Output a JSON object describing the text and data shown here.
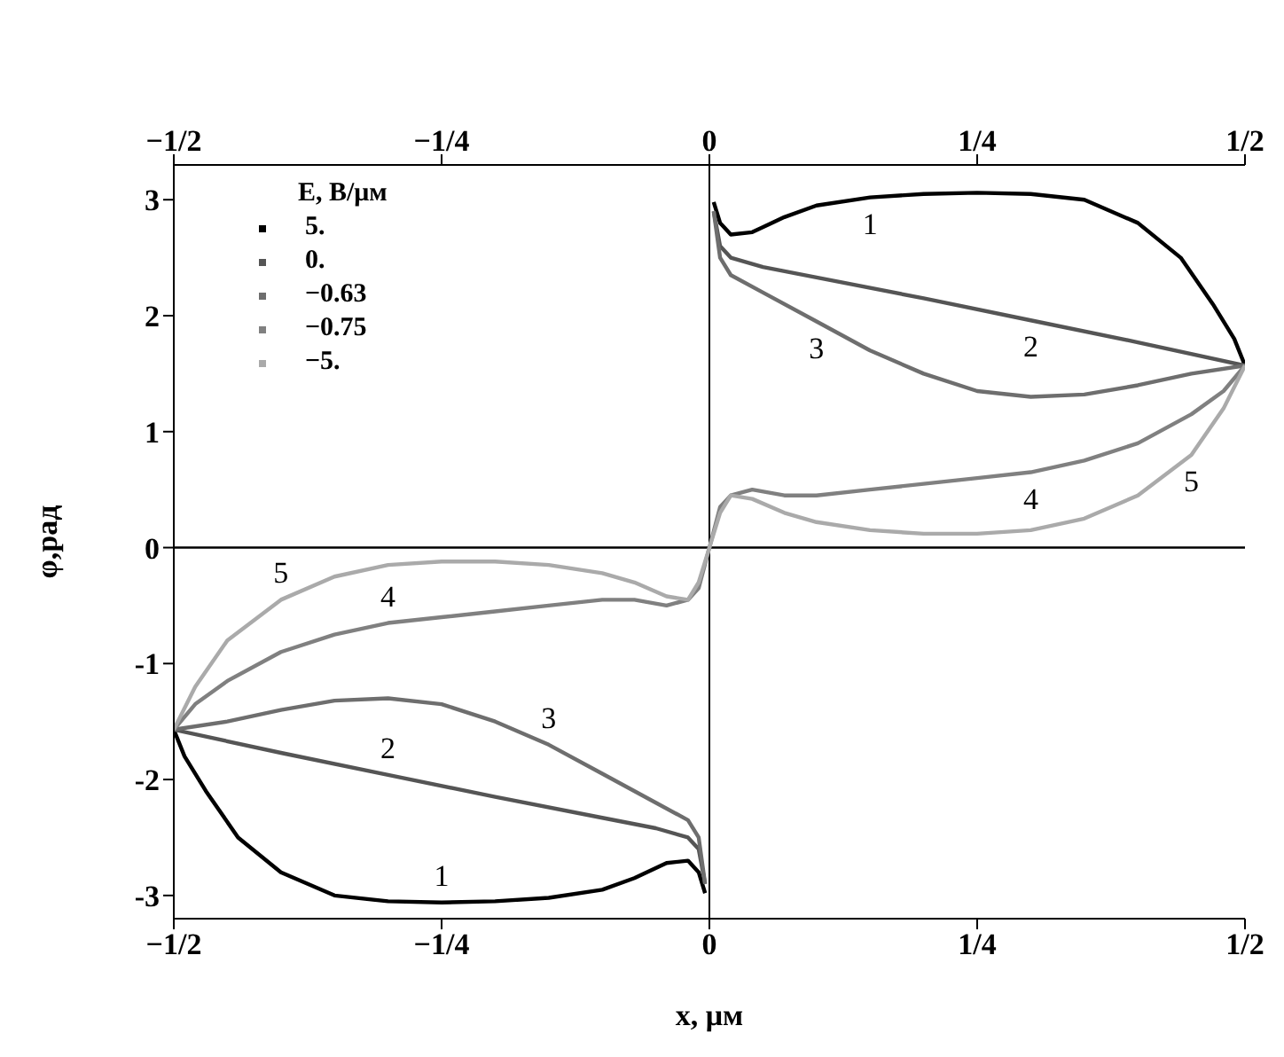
{
  "chart_data": {
    "type": "line",
    "xlabel": "x, μм",
    "ylabel": "φ,рад",
    "legend_title": "E, В/μм",
    "legend": "top left",
    "grid": false,
    "xlim": [
      -0.5,
      0.5
    ],
    "xticks": [
      {
        "value": -0.5,
        "label": "−1/2"
      },
      {
        "value": -0.25,
        "label": "−1/4"
      },
      0,
      {
        "value": 0.25,
        "label": "1/4"
      },
      {
        "value": 0.5,
        "label": "1/2"
      }
    ],
    "x2lim": [
      -0.5,
      0.5
    ],
    "x2ticks": [
      {
        "value": -0.5,
        "label": "−1/2"
      },
      {
        "value": -0.25,
        "label": "−1/4"
      },
      0,
      {
        "value": 0.25,
        "label": "1/4"
      },
      {
        "value": 0.5,
        "label": "1/2"
      }
    ],
    "ylim": [
      -3.2,
      3.3
    ],
    "yticks": [
      -3,
      -2,
      -1,
      0,
      1,
      2,
      3
    ],
    "series": [
      {
        "name": "5.",
        "color": "#000000",
        "x": [
          -0.5,
          -0.49,
          -0.47,
          -0.44,
          -0.4,
          -0.35,
          -0.3,
          -0.25,
          -0.2,
          -0.15,
          -0.1,
          -0.07,
          -0.04,
          -0.02,
          -0.01,
          -0.004,
          0,
          0.004,
          0.01,
          0.02,
          0.04,
          0.07,
          0.1,
          0.15,
          0.2,
          0.25,
          0.3,
          0.35,
          0.4,
          0.44,
          0.47,
          0.49,
          0.5
        ],
        "values": [
          -1.57,
          -1.8,
          -2.1,
          -2.5,
          -2.8,
          -3.0,
          -3.05,
          -3.06,
          -3.05,
          -3.02,
          -2.95,
          -2.85,
          -2.72,
          -2.7,
          -2.8,
          -2.98,
          null,
          2.98,
          2.8,
          2.7,
          2.72,
          2.85,
          2.95,
          3.02,
          3.05,
          3.06,
          3.05,
          3.0,
          2.8,
          2.5,
          2.1,
          1.8,
          1.57
        ]
      },
      {
        "name": "0.",
        "color": "#555555",
        "x": [
          -0.5,
          -0.4,
          -0.3,
          -0.2,
          -0.1,
          -0.05,
          -0.02,
          -0.01,
          -0.004,
          0,
          0.004,
          0.01,
          0.02,
          0.05,
          0.1,
          0.2,
          0.3,
          0.4,
          0.5
        ],
        "values": [
          -1.57,
          -1.77,
          -1.96,
          -2.15,
          -2.33,
          -2.42,
          -2.5,
          -2.6,
          -2.9,
          null,
          2.9,
          2.6,
          2.5,
          2.42,
          2.33,
          2.15,
          1.96,
          1.77,
          1.57
        ]
      },
      {
        "name": "−0.63",
        "color": "#6e6e6e",
        "x": [
          -0.5,
          -0.45,
          -0.4,
          -0.35,
          -0.3,
          -0.25,
          -0.2,
          -0.15,
          -0.1,
          -0.05,
          -0.02,
          -0.01,
          -0.004,
          0,
          0.004,
          0.01,
          0.02,
          0.05,
          0.1,
          0.15,
          0.2,
          0.25,
          0.3,
          0.35,
          0.4,
          0.45,
          0.5
        ],
        "values": [
          -1.57,
          -1.5,
          -1.4,
          -1.32,
          -1.3,
          -1.35,
          -1.5,
          -1.7,
          -1.95,
          -2.2,
          -2.35,
          -2.5,
          -2.9,
          null,
          2.9,
          2.5,
          2.35,
          2.2,
          1.95,
          1.7,
          1.5,
          1.35,
          1.3,
          1.32,
          1.4,
          1.5,
          1.57
        ]
      },
      {
        "name": "−0.75",
        "color": "#808080",
        "x": [
          -0.5,
          -0.48,
          -0.45,
          -0.4,
          -0.35,
          -0.3,
          -0.25,
          -0.2,
          -0.15,
          -0.1,
          -0.07,
          -0.04,
          -0.02,
          -0.01,
          0,
          0.01,
          0.02,
          0.04,
          0.07,
          0.1,
          0.15,
          0.2,
          0.25,
          0.3,
          0.35,
          0.4,
          0.45,
          0.48,
          0.5
        ],
        "values": [
          -1.57,
          -1.35,
          -1.15,
          -0.9,
          -0.75,
          -0.65,
          -0.6,
          -0.55,
          -0.5,
          -0.45,
          -0.45,
          -0.5,
          -0.45,
          -0.35,
          0,
          0.35,
          0.45,
          0.5,
          0.45,
          0.45,
          0.5,
          0.55,
          0.6,
          0.65,
          0.75,
          0.9,
          1.15,
          1.35,
          1.57
        ]
      },
      {
        "name": "−5.",
        "color": "#aaaaaa",
        "x": [
          -0.5,
          -0.48,
          -0.45,
          -0.4,
          -0.35,
          -0.3,
          -0.25,
          -0.2,
          -0.15,
          -0.1,
          -0.07,
          -0.04,
          -0.02,
          -0.01,
          0,
          0.01,
          0.02,
          0.04,
          0.07,
          0.1,
          0.15,
          0.2,
          0.25,
          0.3,
          0.35,
          0.4,
          0.45,
          0.48,
          0.5
        ],
        "values": [
          -1.57,
          -1.2,
          -0.8,
          -0.45,
          -0.25,
          -0.15,
          -0.12,
          -0.12,
          -0.15,
          -0.22,
          -0.3,
          -0.42,
          -0.45,
          -0.3,
          0,
          0.3,
          0.45,
          0.42,
          0.3,
          0.22,
          0.15,
          0.12,
          0.12,
          0.15,
          0.25,
          0.45,
          0.8,
          1.2,
          1.57
        ]
      }
    ],
    "annotations": [
      {
        "text": "1",
        "x": 0.15,
        "y": 3.02
      },
      {
        "text": "2",
        "x": 0.3,
        "y": 1.96
      },
      {
        "text": "3",
        "x": 0.1,
        "y": 1.95
      },
      {
        "text": "4",
        "x": 0.3,
        "y": 0.65
      },
      {
        "text": "5",
        "x": 0.45,
        "y": 0.8
      },
      {
        "text": "5",
        "x": -0.4,
        "y": -0.45
      },
      {
        "text": "4",
        "x": -0.3,
        "y": -0.65
      },
      {
        "text": "3",
        "x": -0.15,
        "y": -1.7
      },
      {
        "text": "2",
        "x": -0.3,
        "y": -1.96
      },
      {
        "text": "1",
        "x": -0.25,
        "y": -3.06
      }
    ]
  }
}
